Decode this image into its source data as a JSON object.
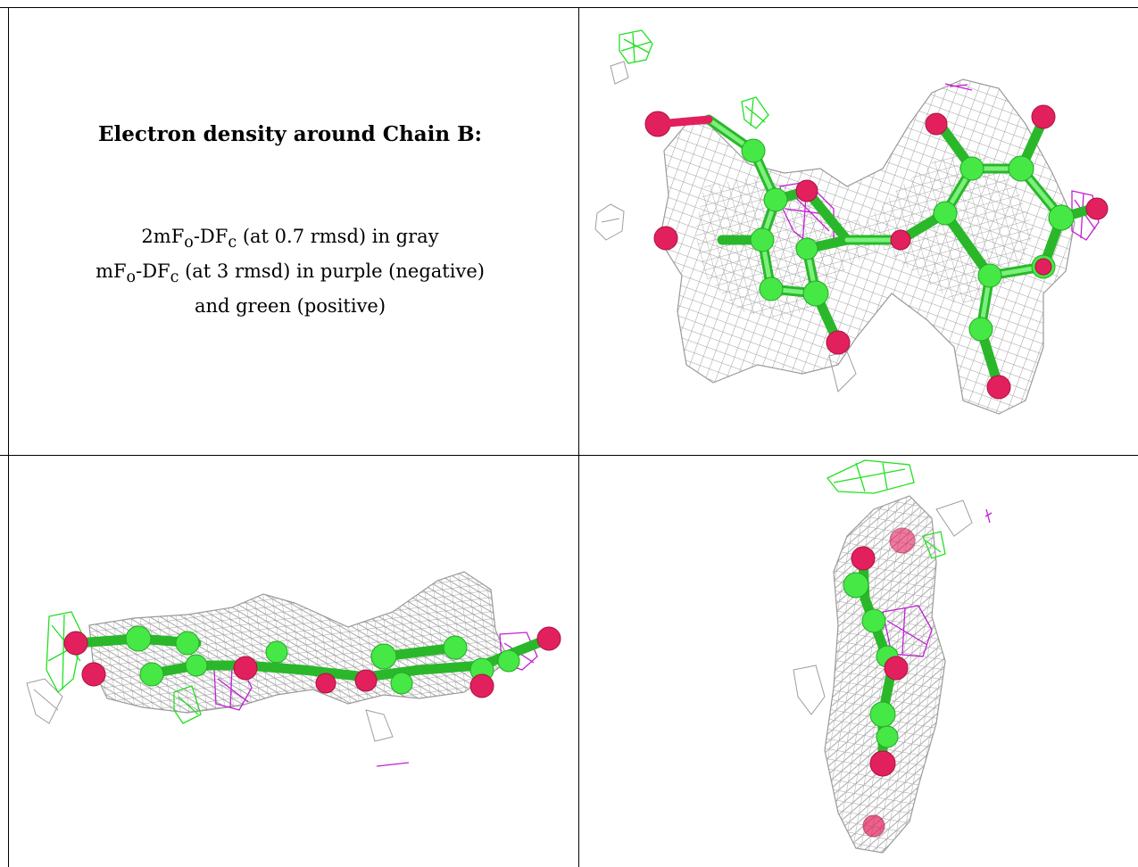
{
  "caption": {
    "title": "Electron density around Chain B:",
    "lines": [
      {
        "pre": "2mF",
        "sub1": "o",
        "mid": "-DF",
        "sub2": "c",
        "post": " (at 0.7 rmsd) in gray"
      },
      {
        "pre": "mF",
        "sub1": "o",
        "mid": "-DF",
        "sub2": "c",
        "post": " (at 3 rmsd) in purple (negative)"
      },
      {
        "text": "and green (positive)"
      }
    ]
  },
  "colors": {
    "density_2fofc": "#9e9e9e",
    "fofc_negative": "#c21ed6",
    "fofc_positive": "#22e022",
    "carbon": "#45e845",
    "oxygen": "#e3205e",
    "grid_line": "#000000"
  },
  "panels": {
    "top_right": "molecule-view-face-on",
    "bottom_left": "molecule-view-edge-on",
    "bottom_right": "molecule-view-end-on"
  }
}
